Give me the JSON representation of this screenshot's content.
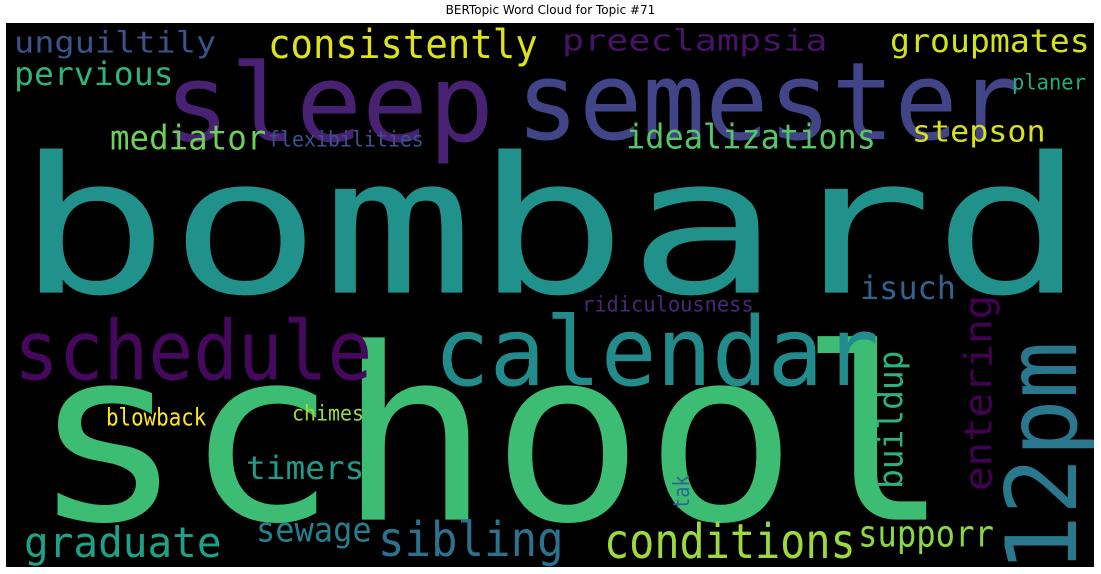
{
  "chart_data": {
    "type": "wordcloud",
    "title": "BERTopic Word Cloud for Topic #71",
    "background": "#000000",
    "colormap": "viridis",
    "words": [
      {
        "text": "bombard",
        "color": "#21918c"
      },
      {
        "text": "school",
        "color": "#3dbc74"
      },
      {
        "text": "sleep",
        "color": "#482173"
      },
      {
        "text": "semester",
        "color": "#414487"
      },
      {
        "text": "calendar",
        "color": "#228c8d"
      },
      {
        "text": "schedule",
        "color": "#46085c"
      },
      {
        "text": "12pm",
        "color": "#2a788e"
      },
      {
        "text": "consistently",
        "color": "#dde318"
      },
      {
        "text": "unguiltily",
        "color": "#3b528b"
      },
      {
        "text": "preeclampsia",
        "color": "#471365"
      },
      {
        "text": "groupmates",
        "color": "#d2e21b"
      },
      {
        "text": "pervious",
        "color": "#2fb47c"
      },
      {
        "text": "planer",
        "color": "#25ab82"
      },
      {
        "text": "mediator",
        "color": "#6ece58"
      },
      {
        "text": "flexibilities",
        "color": "#3b528b"
      },
      {
        "text": "idealizations",
        "color": "#56c667"
      },
      {
        "text": "stepson",
        "color": "#d8e219"
      },
      {
        "text": "isuch",
        "color": "#33638d"
      },
      {
        "text": "ridiculousness",
        "color": "#482878"
      },
      {
        "text": "entering",
        "color": "#440154"
      },
      {
        "text": "buildup",
        "color": "#2db27d"
      },
      {
        "text": "blowback",
        "color": "#fde725"
      },
      {
        "text": "chimes",
        "color": "#a0da39"
      },
      {
        "text": "timers",
        "color": "#1e9b8a"
      },
      {
        "text": "tak",
        "color": "#31668e"
      },
      {
        "text": "sewage",
        "color": "#277f8e"
      },
      {
        "text": "graduate",
        "color": "#1fa187"
      },
      {
        "text": "sibling",
        "color": "#2c718e"
      },
      {
        "text": "conditions",
        "color": "#9bd93c"
      },
      {
        "text": "supporr",
        "color": "#8bd646"
      }
    ]
  }
}
